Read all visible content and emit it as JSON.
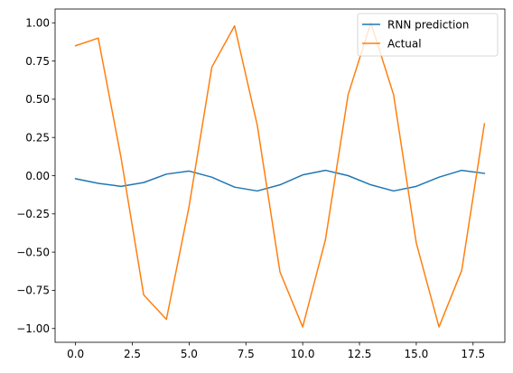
{
  "chart_data": {
    "type": "line",
    "title": "",
    "xlabel": "",
    "ylabel": "",
    "xlim": [
      -0.9,
      18.9
    ],
    "ylim": [
      -1.09,
      1.09
    ],
    "xticks": [
      0.0,
      2.5,
      5.0,
      7.5,
      10.0,
      12.5,
      15.0,
      17.5
    ],
    "xtick_labels": [
      "0.0",
      "2.5",
      "5.0",
      "7.5",
      "10.0",
      "12.5",
      "15.0",
      "17.5"
    ],
    "yticks": [
      -1.0,
      -0.75,
      -0.5,
      -0.25,
      0.0,
      0.25,
      0.5,
      0.75,
      1.0
    ],
    "ytick_labels": [
      "−1.00",
      "−0.75",
      "−0.50",
      "−0.25",
      "0.00",
      "0.25",
      "0.50",
      "0.75",
      "1.00"
    ],
    "grid": false,
    "legend_position": "top-right",
    "x": [
      0,
      1,
      2,
      3,
      4,
      5,
      6,
      7,
      8,
      9,
      10,
      11,
      12,
      13,
      14,
      15,
      16,
      17,
      18
    ],
    "series": [
      {
        "name": "RNN prediction",
        "color": "#1f77b4",
        "values": [
          -0.02,
          -0.05,
          -0.07,
          -0.045,
          0.01,
          0.03,
          -0.01,
          -0.075,
          -0.1,
          -0.06,
          0.005,
          0.035,
          0.0,
          -0.06,
          -0.1,
          -0.07,
          -0.01,
          0.035,
          0.015
        ]
      },
      {
        "name": "Actual",
        "color": "#ff7f0e",
        "values": [
          0.85,
          0.9,
          0.12,
          -0.78,
          -0.94,
          -0.2,
          0.71,
          0.98,
          0.33,
          -0.63,
          -0.99,
          -0.42,
          0.53,
          1.0,
          0.53,
          -0.44,
          -0.99,
          -0.62,
          0.34
        ]
      }
    ]
  }
}
